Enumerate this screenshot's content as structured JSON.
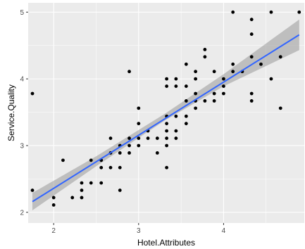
{
  "chart_data": {
    "type": "scatter",
    "xlabel": "Hotel.Attributes",
    "ylabel": "Service.Quality",
    "xlim": [
      1.7,
      4.95
    ],
    "ylim": [
      1.84,
      5.14
    ],
    "x_ticks": [
      2,
      3,
      4
    ],
    "y_ticks": [
      2,
      3,
      4,
      5
    ],
    "grid": true,
    "legend": "none",
    "points": [
      {
        "x": 1.75,
        "y": 2.33
      },
      {
        "x": 1.75,
        "y": 3.78
      },
      {
        "x": 2.0,
        "y": 2.11
      },
      {
        "x": 2.0,
        "y": 2.22
      },
      {
        "x": 2.11,
        "y": 2.78
      },
      {
        "x": 2.22,
        "y": 2.22
      },
      {
        "x": 2.33,
        "y": 2.22
      },
      {
        "x": 2.33,
        "y": 2.33
      },
      {
        "x": 2.33,
        "y": 2.44
      },
      {
        "x": 2.44,
        "y": 2.44
      },
      {
        "x": 2.44,
        "y": 2.78
      },
      {
        "x": 2.56,
        "y": 2.44
      },
      {
        "x": 2.56,
        "y": 2.67
      },
      {
        "x": 2.56,
        "y": 2.78
      },
      {
        "x": 2.67,
        "y": 2.67
      },
      {
        "x": 2.67,
        "y": 2.89
      },
      {
        "x": 2.67,
        "y": 3.11
      },
      {
        "x": 2.78,
        "y": 2.33
      },
      {
        "x": 2.78,
        "y": 2.67
      },
      {
        "x": 2.78,
        "y": 2.89
      },
      {
        "x": 2.78,
        "y": 3.0
      },
      {
        "x": 2.89,
        "y": 2.89
      },
      {
        "x": 2.89,
        "y": 3.0
      },
      {
        "x": 2.89,
        "y": 3.11
      },
      {
        "x": 2.89,
        "y": 4.11
      },
      {
        "x": 3.0,
        "y": 3.0
      },
      {
        "x": 3.0,
        "y": 3.11
      },
      {
        "x": 3.0,
        "y": 3.33
      },
      {
        "x": 3.0,
        "y": 3.56
      },
      {
        "x": 3.11,
        "y": 3.11
      },
      {
        "x": 3.11,
        "y": 3.22
      },
      {
        "x": 3.22,
        "y": 2.89
      },
      {
        "x": 3.22,
        "y": 3.11
      },
      {
        "x": 3.33,
        "y": 2.67
      },
      {
        "x": 3.33,
        "y": 3.0
      },
      {
        "x": 3.33,
        "y": 3.11
      },
      {
        "x": 3.33,
        "y": 3.22
      },
      {
        "x": 3.33,
        "y": 3.33
      },
      {
        "x": 3.33,
        "y": 3.44
      },
      {
        "x": 3.33,
        "y": 3.89
      },
      {
        "x": 3.33,
        "y": 4.0
      },
      {
        "x": 3.44,
        "y": 3.11
      },
      {
        "x": 3.44,
        "y": 3.22
      },
      {
        "x": 3.44,
        "y": 3.44
      },
      {
        "x": 3.44,
        "y": 3.89
      },
      {
        "x": 3.44,
        "y": 4.0
      },
      {
        "x": 3.56,
        "y": 3.33
      },
      {
        "x": 3.56,
        "y": 3.44
      },
      {
        "x": 3.56,
        "y": 3.67
      },
      {
        "x": 3.56,
        "y": 3.89
      },
      {
        "x": 3.56,
        "y": 4.22
      },
      {
        "x": 3.67,
        "y": 3.56
      },
      {
        "x": 3.67,
        "y": 3.67
      },
      {
        "x": 3.67,
        "y": 3.78
      },
      {
        "x": 3.67,
        "y": 4.0
      },
      {
        "x": 3.67,
        "y": 4.11
      },
      {
        "x": 3.78,
        "y": 3.67
      },
      {
        "x": 3.78,
        "y": 4.33
      },
      {
        "x": 3.78,
        "y": 4.44
      },
      {
        "x": 3.89,
        "y": 3.67
      },
      {
        "x": 3.89,
        "y": 3.78
      },
      {
        "x": 3.89,
        "y": 4.11
      },
      {
        "x": 4.0,
        "y": 3.78
      },
      {
        "x": 4.0,
        "y": 3.89
      },
      {
        "x": 4.0,
        "y": 4.0
      },
      {
        "x": 4.11,
        "y": 4.11
      },
      {
        "x": 4.11,
        "y": 4.22
      },
      {
        "x": 4.11,
        "y": 5.0
      },
      {
        "x": 4.22,
        "y": 4.11
      },
      {
        "x": 4.33,
        "y": 3.67
      },
      {
        "x": 4.33,
        "y": 3.78
      },
      {
        "x": 4.33,
        "y": 4.33
      },
      {
        "x": 4.33,
        "y": 4.67
      },
      {
        "x": 4.33,
        "y": 4.89
      },
      {
        "x": 4.44,
        "y": 4.22
      },
      {
        "x": 4.56,
        "y": 4.0
      },
      {
        "x": 4.56,
        "y": 5.0
      },
      {
        "x": 4.67,
        "y": 3.56
      },
      {
        "x": 4.67,
        "y": 4.33
      },
      {
        "x": 4.89,
        "y": 5.0
      }
    ],
    "fit": {
      "method": "lm",
      "x": [
        1.75,
        4.89
      ],
      "y": [
        2.16,
        4.66
      ],
      "ci": [
        {
          "x": 1.75,
          "lo": 2.03,
          "hi": 2.29
        },
        {
          "x": 2.5,
          "lo": 2.69,
          "hi": 2.84
        },
        {
          "x": 3.3,
          "lo": 3.37,
          "hi": 3.47
        },
        {
          "x": 4.0,
          "lo": 3.89,
          "hi": 4.07
        },
        {
          "x": 4.89,
          "lo": 4.43,
          "hi": 4.89
        }
      ],
      "line_color": "#3366ff",
      "band_color": "#999999"
    },
    "colors": {
      "panel_background": "#ebebeb",
      "grid_major": "#ffffff",
      "point": "#000000"
    }
  }
}
